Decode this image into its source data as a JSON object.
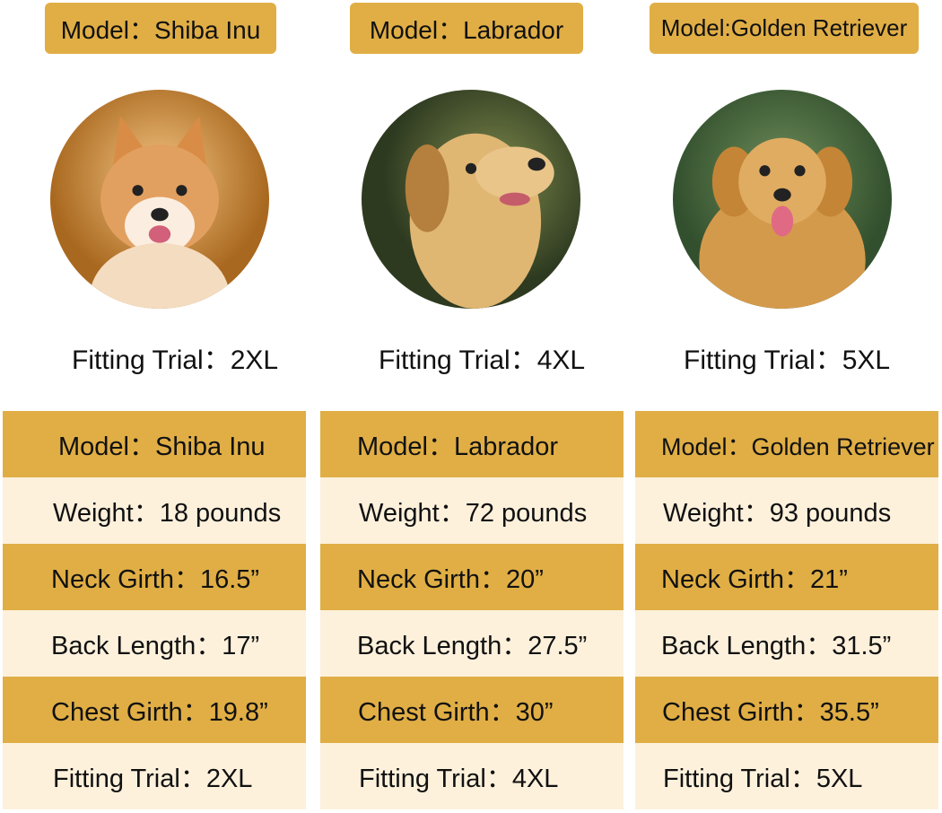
{
  "colors": {
    "gold": "#e0ae45",
    "cream": "#fdf1dc"
  },
  "dogs": [
    {
      "badge": "Model：Shiba Inu",
      "fitting_trial": "Fitting Trial：2XL",
      "table": {
        "model": "Model：Shiba Inu",
        "weight": "Weight：18 pounds",
        "neck": "Neck Girth：16.5”",
        "back": "Back Length：17”",
        "chest": "Chest Girth：19.8”",
        "fit": "Fitting Trial：2XL"
      }
    },
    {
      "badge": "Model：Labrador",
      "fitting_trial": "Fitting Trial：4XL",
      "table": {
        "model": "Model：Labrador",
        "weight": "Weight：72 pounds",
        "neck": "Neck Girth：20”",
        "back": "Back Length：27.5”",
        "chest": "Chest Girth：30”",
        "fit": "Fitting Trial：4XL"
      }
    },
    {
      "badge": "Model:Golden Retriever",
      "fitting_trial": "Fitting Trial：5XL",
      "table": {
        "model": "Model：Golden Retriever",
        "weight": "Weight：93 pounds",
        "neck": "Neck Girth：21”",
        "back": "Back Length：31.5”",
        "chest": "Chest Girth：35.5”",
        "fit": "Fitting Trial：5XL"
      }
    }
  ]
}
